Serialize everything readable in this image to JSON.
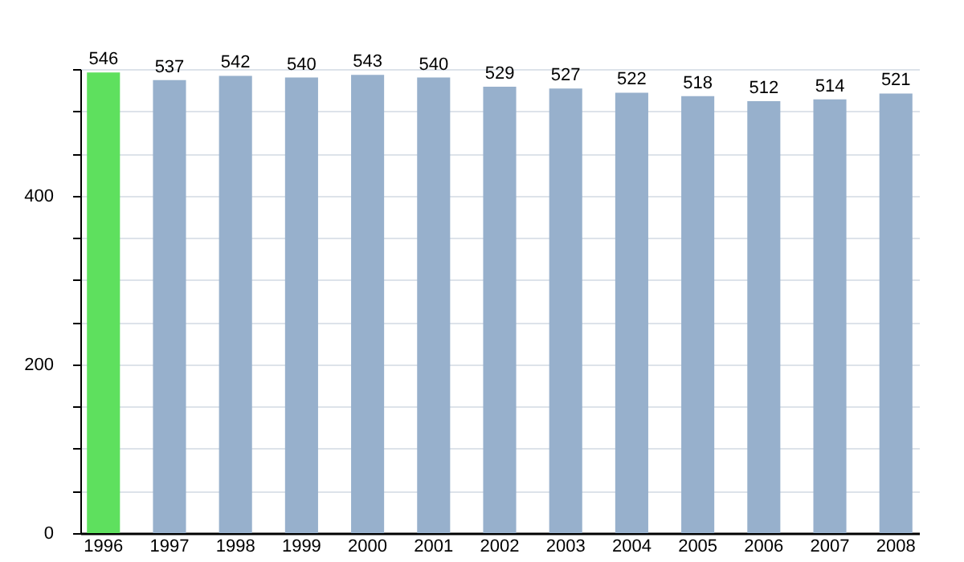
{
  "chart_data": {
    "type": "bar",
    "categories": [
      "1996",
      "1997",
      "1998",
      "1999",
      "2000",
      "2001",
      "2002",
      "2003",
      "2004",
      "2005",
      "2006",
      "2007",
      "2008"
    ],
    "values": [
      546,
      537,
      542,
      540,
      543,
      540,
      529,
      527,
      522,
      518,
      512,
      514,
      521
    ],
    "colors": [
      "#5ee05e",
      "#97b0cc",
      "#97b0cc",
      "#97b0cc",
      "#97b0cc",
      "#97b0cc",
      "#97b0cc",
      "#97b0cc",
      "#97b0cc",
      "#97b0cc",
      "#97b0cc",
      "#97b0cc",
      "#97b0cc"
    ],
    "ylim": [
      0,
      550
    ],
    "yticks": [
      0,
      {
        "value": 50,
        "label": null
      },
      {
        "value": 100,
        "label": null
      },
      {
        "value": 150,
        "label": null
      },
      200,
      {
        "value": 250,
        "label": null
      },
      {
        "value": 300,
        "label": null
      },
      {
        "value": 350,
        "label": null
      },
      400,
      {
        "value": 450,
        "label": null
      },
      {
        "value": 500,
        "label": null
      },
      {
        "value": 550,
        "label": null
      }
    ],
    "grid": true,
    "data_labels": true
  }
}
